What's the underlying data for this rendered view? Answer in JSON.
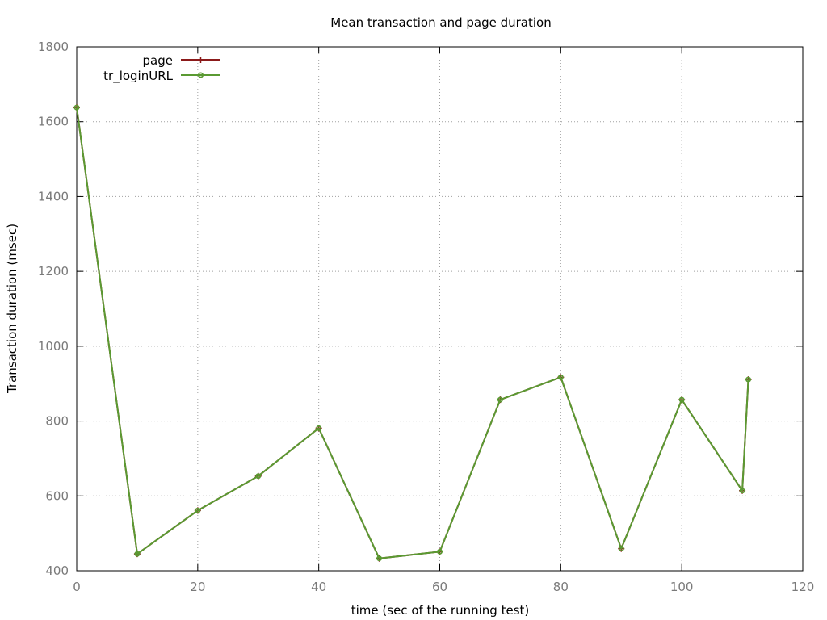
{
  "chart_data": {
    "type": "line",
    "title": "Mean transaction and page duration",
    "xlabel": "time (sec of the running test)",
    "ylabel": "Transaction duration (msec)",
    "xlim": [
      0,
      120
    ],
    "ylim": [
      400,
      1800
    ],
    "xticks": [
      0,
      20,
      40,
      60,
      80,
      100,
      120
    ],
    "yticks": [
      400,
      600,
      800,
      1000,
      1200,
      1400,
      1600,
      1800
    ],
    "grid": true,
    "legend_position": "top-left",
    "x": [
      0,
      10,
      20,
      30,
      40,
      50,
      60,
      70,
      80,
      90,
      100,
      110,
      111
    ],
    "series": [
      {
        "name": "page",
        "color": "#8b1a1a",
        "marker": "plus",
        "values": [
          1638,
          445,
          561,
          653,
          781,
          433,
          451,
          857,
          917,
          459,
          857,
          614,
          911
        ]
      },
      {
        "name": "tr_loginURL",
        "color": "#5a9a32",
        "marker": "circle",
        "values": [
          1638,
          445,
          561,
          653,
          781,
          433,
          451,
          857,
          917,
          459,
          857,
          614,
          911
        ]
      }
    ]
  }
}
